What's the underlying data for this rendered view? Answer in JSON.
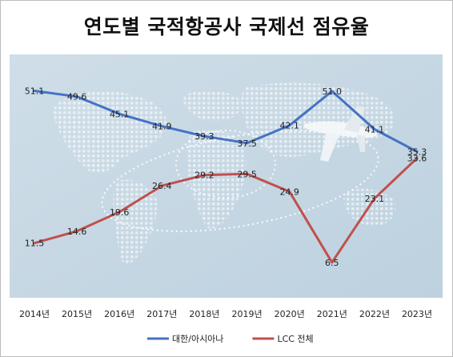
{
  "chart_data": {
    "type": "line",
    "title": "연도별 국적항공사 국제선 점유율",
    "categories": [
      "2014년",
      "2015년",
      "2016년",
      "2017년",
      "2018년",
      "2019년",
      "2020년",
      "2021년",
      "2022년",
      "2023년"
    ],
    "series": [
      {
        "name": "대한/아시아나",
        "color": "#4472c4",
        "values": [
          51.1,
          49.6,
          45.1,
          41.9,
          39.3,
          37.5,
          42.1,
          51.0,
          41.1,
          35.3
        ]
      },
      {
        "name": "LCC 전체",
        "color": "#c0504d",
        "values": [
          11.5,
          14.6,
          19.6,
          26.4,
          29.2,
          29.5,
          24.9,
          6.5,
          23.1,
          33.6
        ]
      }
    ],
    "legend_position": "bottom",
    "grid": false
  }
}
